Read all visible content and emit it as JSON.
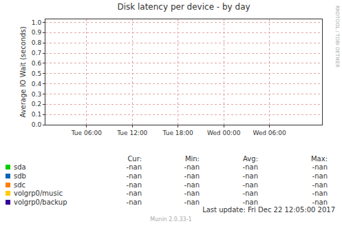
{
  "chart_data": {
    "type": "line",
    "title": "Disk latency per device - by day",
    "y_label": "Average IO Wait (seconds)",
    "x": [],
    "xlim": [
      0.6,
      36.9
    ],
    "xticks": [
      {
        "value": 6,
        "label": "Tue 06:00"
      },
      {
        "value": 12,
        "label": "Tue 12:00"
      },
      {
        "value": 18,
        "label": "Tue 18:00"
      },
      {
        "value": 24,
        "label": "Wed 00:00"
      },
      {
        "value": 30,
        "label": "Wed 06:00"
      }
    ],
    "ylim": [
      0,
      1.03
    ],
    "yticks": [
      {
        "value": 0,
        "label": "0.0"
      },
      0.1,
      0.2,
      0.3,
      0.4,
      0.5,
      0.6,
      0.7,
      0.8,
      0.9,
      {
        "value": 1,
        "label": "1.0"
      }
    ],
    "grid": true,
    "legend_columns": [
      "Cur:",
      "Min:",
      "Avg:",
      "Max:"
    ],
    "series": [
      {
        "name": "sda",
        "color": "#00cc00",
        "values": [],
        "stats": [
          "-nan",
          "-nan",
          "-nan",
          "-nan"
        ]
      },
      {
        "name": "sdb",
        "color": "#0066b3",
        "values": [],
        "stats": [
          "-nan",
          "-nan",
          "-nan",
          "-nan"
        ]
      },
      {
        "name": "sdc",
        "color": "#ff8000",
        "values": [],
        "stats": [
          "-nan",
          "-nan",
          "-nan",
          "-nan"
        ]
      },
      {
        "name": "volgrp0/music",
        "color": "#ffcc00",
        "values": [],
        "stats": [
          "-nan",
          "-nan",
          "-nan",
          "-nan"
        ]
      },
      {
        "name": "volgrp0/backup",
        "color": "#330099",
        "values": [],
        "stats": [
          "-nan",
          "-nan",
          "-nan",
          "-nan"
        ]
      }
    ],
    "last_update": "Last update: Fri Dec 22 12:05:00 2017",
    "footer": "Munin 2.0.33-1",
    "watermark": "RRDTOOL / TOBI OETIKER"
  }
}
